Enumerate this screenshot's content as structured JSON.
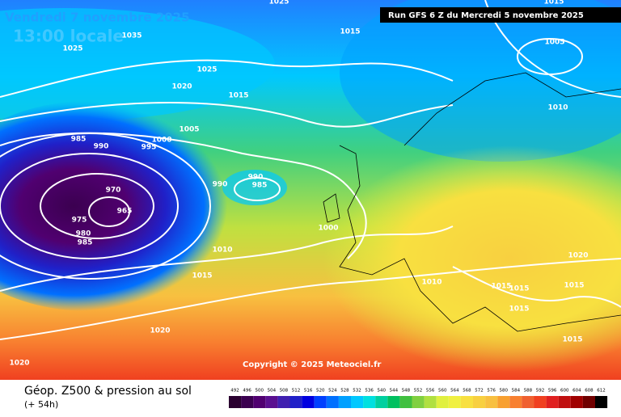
{
  "header": {
    "valid_date": "Vendredi 7 novembre 2025",
    "local_time": "13:00 locale",
    "run": "Run GFS 6 Z du Mercredi 5 novembre 2025"
  },
  "isobar_labels": [
    "1025",
    "1035",
    "1025",
    "1025",
    "1020",
    "1015",
    "1015",
    "1005",
    "1010",
    "1005",
    "1000",
    "995",
    "985",
    "990",
    "970",
    "965",
    "975",
    "980",
    "985",
    "990",
    "985",
    "990",
    "1000",
    "1010",
    "1015",
    "1020",
    "1020",
    "1010",
    "1015",
    "1015",
    "1015",
    "1015",
    "1020",
    "1015",
    "1015"
  ],
  "copyright": "Copyright © 2025 Meteociel.fr",
  "footer": {
    "title": "Géop. Z500 & pression au sol",
    "lead": "(+ 54h)"
  },
  "scale": {
    "labels": [
      492,
      496,
      500,
      504,
      508,
      512,
      516,
      520,
      524,
      528,
      532,
      536,
      540,
      544,
      548,
      552,
      556,
      560,
      564,
      568,
      572,
      576,
      580,
      584,
      588,
      592,
      596,
      600,
      604,
      608,
      612
    ],
    "colors": [
      "#2a0030",
      "#3b0050",
      "#500070",
      "#5a1090",
      "#4020b0",
      "#2020c8",
      "#0000e0",
      "#0040ff",
      "#0070ff",
      "#00a0ff",
      "#00c8ff",
      "#00e0e0",
      "#00d0a0",
      "#00c060",
      "#40c040",
      "#80d040",
      "#b0e040",
      "#e0f040",
      "#f0f040",
      "#f8e040",
      "#f8d040",
      "#f8c040",
      "#f8a030",
      "#f88030",
      "#f06030",
      "#f04020",
      "#e02020",
      "#c01010",
      "#a00000",
      "#700000",
      "#000000"
    ]
  }
}
